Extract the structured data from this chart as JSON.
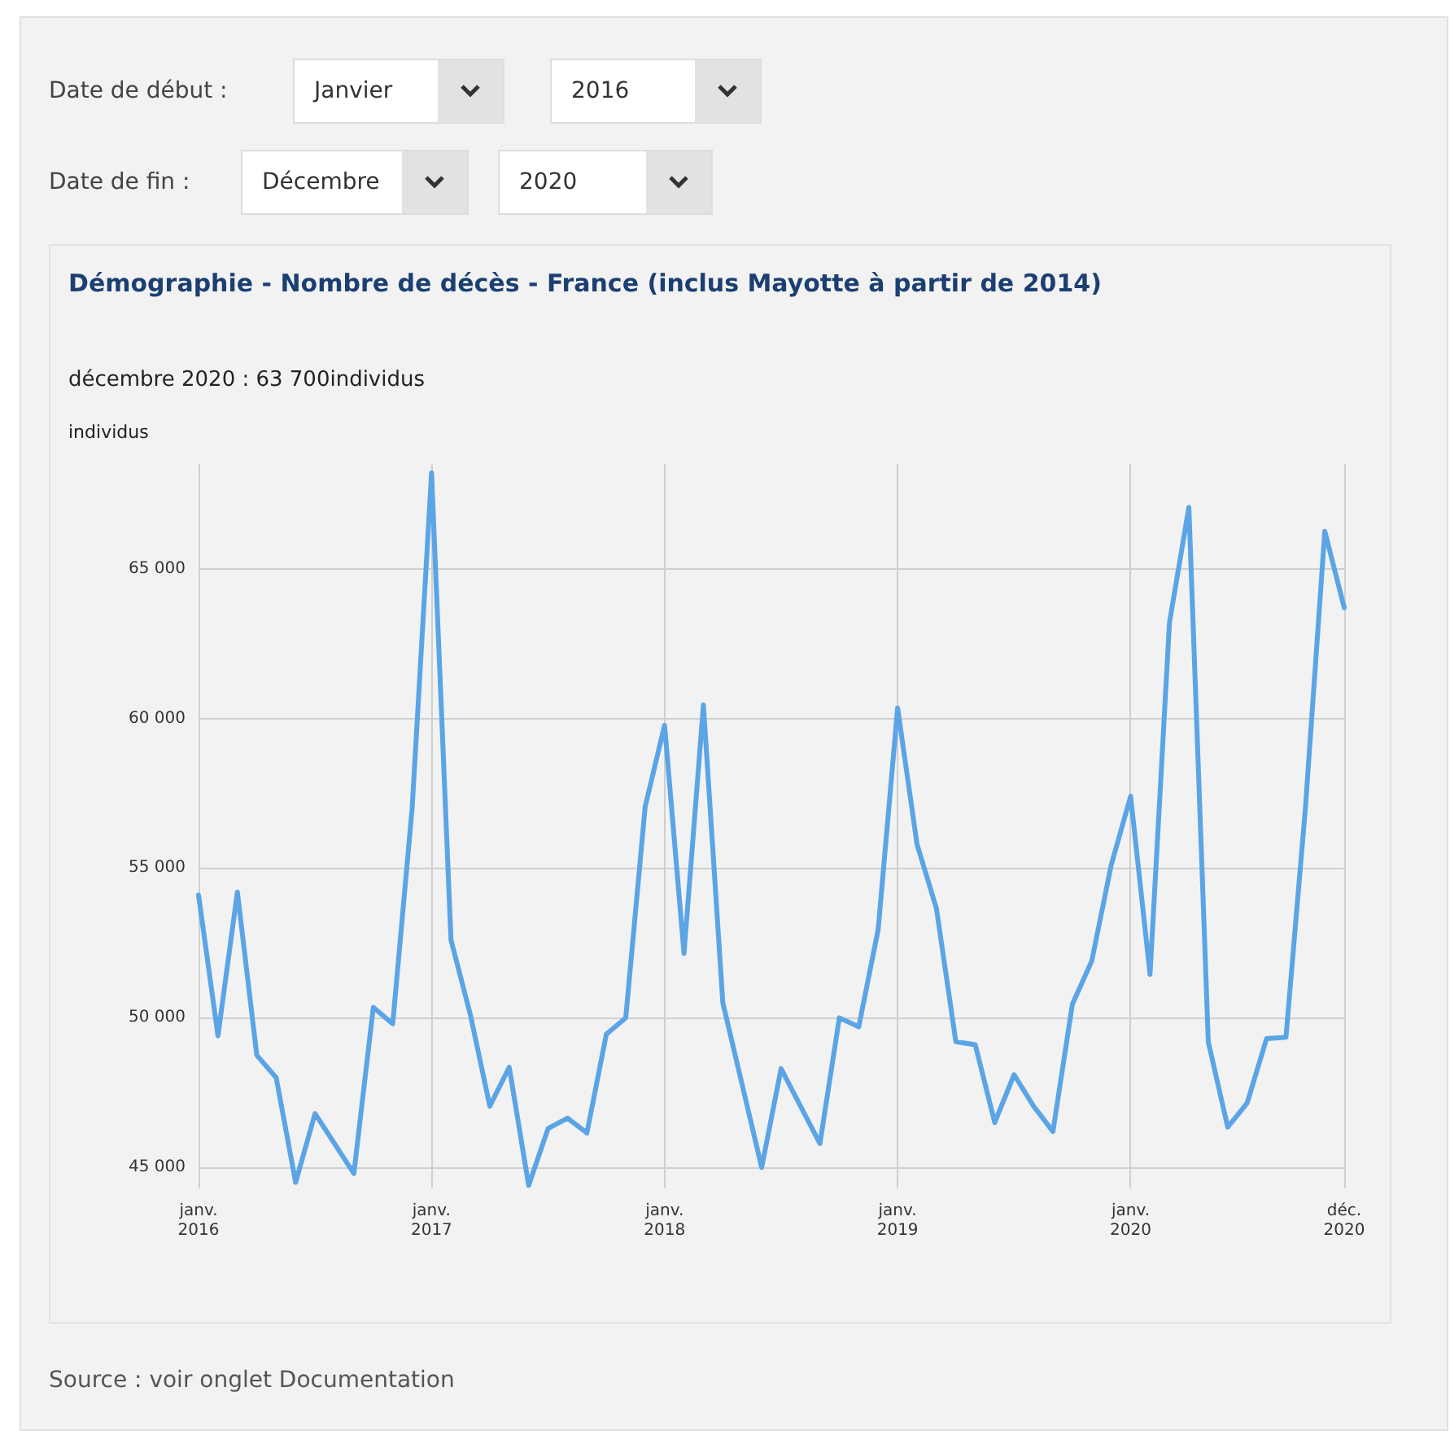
{
  "chart_data": {
    "type": "line",
    "title": "Démographie - Nombre de décès - France (inclus Mayotte à partir de 2014)",
    "subtitle": "décembre 2020 : 63 700individus",
    "ylabel": "individus",
    "categories": [
      "janv.\n2016",
      null,
      null,
      null,
      null,
      null,
      null,
      null,
      null,
      null,
      null,
      null,
      "janv.\n2017",
      null,
      null,
      null,
      null,
      null,
      null,
      null,
      null,
      null,
      null,
      null,
      "janv.\n2018",
      null,
      null,
      null,
      null,
      null,
      null,
      null,
      null,
      null,
      null,
      null,
      "janv.\n2019",
      null,
      null,
      null,
      null,
      null,
      null,
      null,
      null,
      null,
      null,
      null,
      "janv.\n2020",
      null,
      null,
      null,
      null,
      null,
      null,
      null,
      null,
      null,
      null,
      "déc.\n2020"
    ],
    "series": [
      {
        "color": "#5ba4e5",
        "values": [
          54100,
          49400,
          54200,
          48750,
          48000,
          44500,
          46800,
          45800,
          44800,
          50350,
          49800,
          57000,
          68200,
          52600,
          50100,
          47050,
          48350,
          44400,
          46300,
          46650,
          46150,
          49450,
          50000,
          57050,
          59770,
          52150,
          60450,
          50500,
          47750,
          45000,
          48300,
          47050,
          45800,
          50000,
          49700,
          52950,
          60350,
          55800,
          53650,
          49200,
          49100,
          46500,
          48100,
          47050,
          46200,
          50450,
          51900,
          55100,
          57400,
          51450,
          63200,
          67050,
          49200,
          46350,
          47150,
          49300,
          49350,
          57000,
          66250,
          63700
        ]
      }
    ],
    "ylim": [
      44300,
      68500
    ],
    "yticks": [
      {
        "value": 45000,
        "label": "45 000"
      },
      {
        "value": 50000,
        "label": "50 000"
      },
      {
        "value": 55000,
        "label": "55 000"
      },
      {
        "value": 60000,
        "label": "60 000"
      },
      {
        "value": 65000,
        "label": "65 000"
      }
    ],
    "grid": true,
    "marker": "none",
    "line_style": "solid",
    "annotations": [
      "Date de début :",
      "Janvier",
      "2016",
      "Date de fin :",
      "Décembre",
      "2020",
      "Source : voir onglet Documentation"
    ]
  }
}
